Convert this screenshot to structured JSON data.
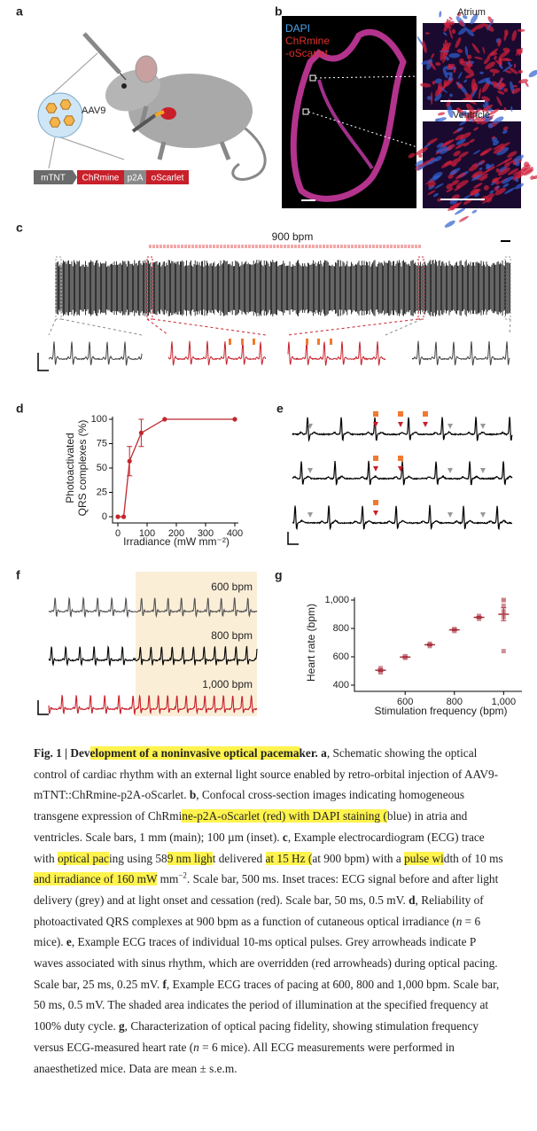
{
  "panel_labels": [
    "a",
    "b",
    "c",
    "d",
    "e",
    "f",
    "g"
  ],
  "a": {
    "vector": "AAV9",
    "construct": [
      "mTNT",
      "ChRmine",
      "p2A",
      "oScarlet"
    ]
  },
  "b": {
    "legend": [
      {
        "text": "DAPI",
        "color": "#4aa3e8"
      },
      {
        "text": "ChRmine",
        "color": "#e0302a"
      },
      {
        "text": "-oScarlet",
        "color": "#e0302a"
      }
    ],
    "insets": [
      "Atrium",
      "Ventricle"
    ]
  },
  "c": {
    "label": "900 bpm"
  },
  "f": {
    "labels": [
      "600 bpm",
      "800 bpm",
      "1,000 bpm"
    ]
  },
  "chart_data": [
    {
      "type": "line",
      "x": [
        0,
        20,
        40,
        80,
        160,
        400
      ],
      "values": [
        0,
        0,
        57,
        86,
        100,
        100
      ],
      "errors": [
        null,
        null,
        15,
        14,
        null,
        null
      ],
      "color": "#c1272d",
      "xlim": [
        0,
        400
      ],
      "xticks": [
        0,
        100,
        200,
        300,
        400
      ],
      "ylim": [
        0,
        100
      ],
      "yticks": [
        0,
        25,
        50,
        75,
        100
      ],
      "x_label": "Irradiance (mW mm⁻²)",
      "y_label": [
        "Photoactivated",
        "QRS complexes (%)"
      ]
    },
    {
      "type": "scatter",
      "x": [
        500,
        600,
        700,
        800,
        900,
        1000
      ],
      "values": [
        505,
        598,
        685,
        790,
        878,
        900
      ],
      "errors": [
        8,
        4,
        6,
        5,
        6,
        45
      ],
      "points_x": [
        500,
        500,
        500,
        500,
        500,
        500,
        600,
        600,
        600,
        600,
        600,
        600,
        700,
        700,
        700,
        700,
        700,
        700,
        800,
        800,
        800,
        800,
        800,
        800,
        900,
        900,
        900,
        900,
        900,
        900,
        1000,
        1000,
        1000,
        1000,
        1000,
        1000
      ],
      "points_values": [
        490,
        495,
        500,
        505,
        510,
        520,
        592,
        596,
        598,
        600,
        602,
        604,
        676,
        680,
        684,
        688,
        690,
        692,
        782,
        786,
        790,
        792,
        794,
        796,
        868,
        872,
        876,
        880,
        884,
        888,
        640,
        880,
        920,
        960,
        1000,
        1000
      ],
      "color": "#c97b84",
      "mean_color": "#a8323e",
      "xlim": [
        430,
        1060
      ],
      "xticks": [
        600,
        800,
        {
          "value": 1000,
          "label": "1,000"
        }
      ],
      "ylim": [
        400,
        1000
      ],
      "yticks": [
        400,
        600,
        800,
        {
          "value": 1000,
          "label": "1,000"
        }
      ],
      "x_label": "Stimulation frequency (bpm)",
      "y_label": "Heart rate (bpm)"
    }
  ],
  "caption": [
    {
      "text": "Fig. 1 | Dev",
      "style": "b"
    },
    {
      "text": "elopment of a noninvasive optical pacema",
      "style": "b h"
    },
    {
      "text": "ker. ",
      "style": "b"
    },
    {
      "text": "a",
      "style": "b"
    },
    {
      "text": ", Schematic showing the optical control of cardiac rhythm with an external light source enabled by retro-orbital injection of AAV9-mTNT::ChRmine-p2A-oScarlet. "
    },
    {
      "text": "b",
      "style": "b"
    },
    {
      "text": ", Confocal cross-section images indicating homogeneous transgene expression of ChRmi"
    },
    {
      "text": "ne-p2A-oScarlet (red) with DAPI staining (",
      "style": "h"
    },
    {
      "text": "blue) in atria and ventricles. Scale bars, 1 mm (main); 100 µm (inset). "
    },
    {
      "text": "c",
      "style": "b"
    },
    {
      "text": ", Example electrocardiogram (ECG) trace with "
    },
    {
      "text": "optical pac",
      "style": "h"
    },
    {
      "text": "ing using 58"
    },
    {
      "text": "9 nm ligh",
      "style": "h"
    },
    {
      "text": "t delivered "
    },
    {
      "text": "at 15 Hz (",
      "style": "h"
    },
    {
      "text": "at 900 bpm) with a "
    },
    {
      "text": "pulse wi",
      "style": "h"
    },
    {
      "text": "dth of 10 ms "
    },
    {
      "text": "and irradiance of 160 mW",
      "style": "h"
    },
    {
      "text": " mm"
    },
    {
      "text": "−2",
      "style": "sup"
    },
    {
      "text": ". Scale bar, 500 ms. Inset traces: ECG signal before and after light delivery (grey) and at light onset and cessation (red). Scale bar, 50 ms, 0.5 mV. "
    },
    {
      "text": "d",
      "style": "b"
    },
    {
      "text": ", Reliability of photoactivated QRS complexes at 900 bpm as a function of cutaneous optical irradiance ("
    },
    {
      "text": "n",
      "style": "i"
    },
    {
      "text": " = 6 mice). "
    },
    {
      "text": "e",
      "style": "b"
    },
    {
      "text": ", Example ECG traces of individual 10-ms optical pulses. Grey arrowheads indicate P waves associated with sinus rhythm, which are overridden (red arrowheads) during optical pacing. Scale bar, 25 ms, 0.25 mV. "
    },
    {
      "text": "f",
      "style": "b"
    },
    {
      "text": ", Example ECG traces of pacing at 600, 800 and 1,000 bpm. Scale bar, 50 ms, 0.5 mV. The shaded area indicates the period of illumination at the specified frequency at 100% duty cycle. "
    },
    {
      "text": "g",
      "style": "b"
    },
    {
      "text": ", Characterization of optical pacing fidelity, showing stimulation frequency versus ECG-measured heart rate ("
    },
    {
      "text": "n",
      "style": "i"
    },
    {
      "text": " = 6 mice). All ECG measurements were performed in anaesthetized mice. Data are mean ± s.e.m."
    }
  ]
}
